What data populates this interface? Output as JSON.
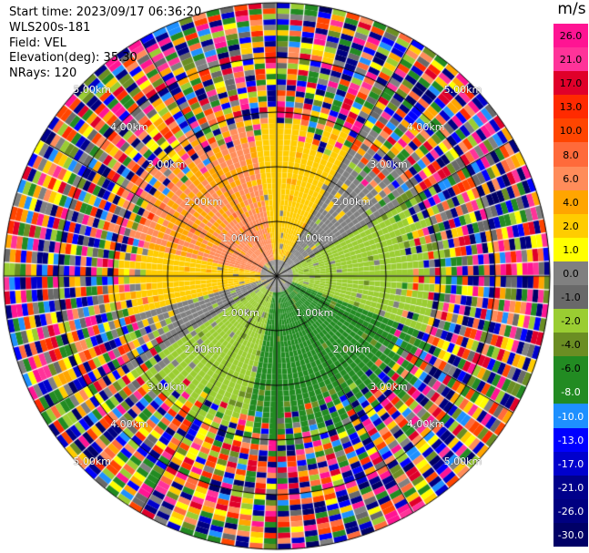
{
  "header": {
    "start_time": "Start time: 2023/09/17 06:36:20",
    "instrument": "WLS200s-181",
    "field": "Field: VEL",
    "elevation": "Elevation(deg): 35.30",
    "nrays": "NRays: 120"
  },
  "colorbar": {
    "unit": "m/s",
    "levels": [
      "26.0",
      "21.0",
      "17.0",
      "13.0",
      "10.0",
      "8.0",
      "6.0",
      "4.0",
      "2.0",
      "1.0",
      "0.0",
      "-1.0",
      "-2.0",
      "-4.0",
      "-6.0",
      "-8.0",
      "-10.0",
      "-13.0",
      "-17.0",
      "-21.0",
      "-26.0",
      "-30.0"
    ],
    "colors": [
      "#ff1493",
      "#ff3399",
      "#e0002a",
      "#ff2a00",
      "#ff4500",
      "#ff6a3a",
      "#ff8c5a",
      "#ffa500",
      "#ffcc00",
      "#ffff00",
      "#808080",
      "#696969",
      "#9acd32",
      "#6b8e23",
      "#228b22",
      "#228b22",
      "#1e90ff",
      "#0000ff",
      "#0000cd",
      "#00008b",
      "#000080",
      "#000066"
    ]
  },
  "chart_data": {
    "type": "ppi",
    "field": "VEL",
    "nrays": 120,
    "range_rings_km": [
      1.0,
      2.0,
      3.0,
      4.0,
      5.0
    ],
    "ring_labels": [
      "1.00km",
      "2.00km",
      "3.00km",
      "4.00km",
      "5.00km"
    ],
    "max_range_km": 5.0,
    "azimuth_sectors": [
      {
        "az_from": 280,
        "az_to": 350,
        "velocity": 6.0
      },
      {
        "az_from": 350,
        "az_to": 30,
        "velocity": 2.0
      },
      {
        "az_from": 30,
        "az_to": 60,
        "velocity": 0.0
      },
      {
        "az_from": 60,
        "az_to": 110,
        "velocity": -2.0
      },
      {
        "az_from": 110,
        "az_to": 190,
        "velocity": -6.0
      },
      {
        "az_from": 190,
        "az_to": 235,
        "velocity": -2.0
      },
      {
        "az_from": 235,
        "az_to": 255,
        "velocity": 0.0
      },
      {
        "az_from": 255,
        "az_to": 280,
        "velocity": 2.0
      }
    ],
    "valid_range_km": 2.8
  },
  "colors": {
    "background": "#ffffff",
    "grid": "#000000"
  }
}
